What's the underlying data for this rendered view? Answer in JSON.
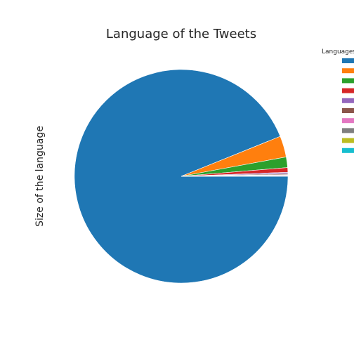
{
  "chart_data": {
    "type": "pie",
    "title": "Language of the Tweets",
    "ylabel": "Size of the language",
    "legend": {
      "title": "Languages",
      "placement": "right",
      "labels_visible": false
    },
    "slices": [
      {
        "value": 93.9,
        "color": "#1f77b4"
      },
      {
        "value": 3.2,
        "color": "#ff7f0e"
      },
      {
        "value": 1.6,
        "color": "#2ca02c"
      },
      {
        "value": 0.7,
        "color": "#d62728"
      },
      {
        "value": 0.2,
        "color": "#9467bd"
      },
      {
        "value": 0.15,
        "color": "#8c564b"
      },
      {
        "value": 0.1,
        "color": "#e377c2"
      },
      {
        "value": 0.07,
        "color": "#7f7f7f"
      },
      {
        "value": 0.05,
        "color": "#bcbd22"
      },
      {
        "value": 0.03,
        "color": "#17becf"
      }
    ],
    "start_angle_deg": 0,
    "direction": "clockwise"
  }
}
